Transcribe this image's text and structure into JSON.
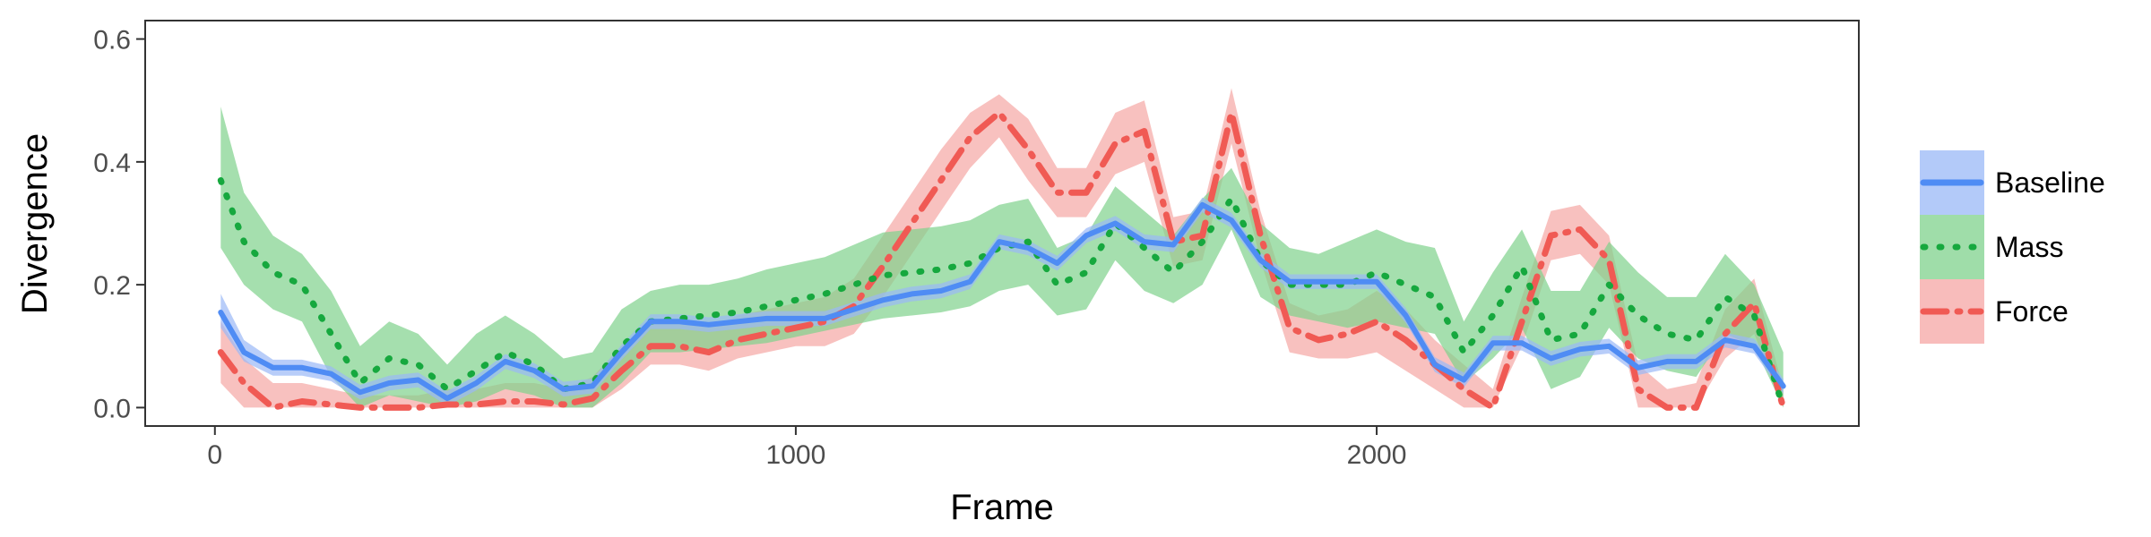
{
  "chart_data": {
    "type": "line",
    "title": "",
    "xlabel": "Frame",
    "ylabel": "Divergence",
    "xlim": [
      -120,
      2830
    ],
    "ylim": [
      -0.03,
      0.63
    ],
    "x_ticks": [
      0,
      1000,
      2000
    ],
    "x_tick_labels": [
      "0",
      "1000",
      "2000"
    ],
    "y_ticks": [
      0.0,
      0.2,
      0.4,
      0.6
    ],
    "y_tick_labels": [
      "0.0",
      "0.2",
      "0.4",
      "0.6"
    ],
    "grid": false,
    "legend_position": "right",
    "series": [
      {
        "name": "Baseline",
        "color": "#4f8cf4",
        "line_style": "solid",
        "band_color": "#9ab8f7",
        "x": [
          10,
          50,
          100,
          150,
          200,
          250,
          300,
          350,
          400,
          450,
          500,
          550,
          600,
          650,
          700,
          750,
          800,
          850,
          900,
          950,
          1000,
          1050,
          1100,
          1150,
          1200,
          1250,
          1300,
          1350,
          1400,
          1450,
          1500,
          1550,
          1600,
          1650,
          1700,
          1750,
          1800,
          1850,
          1900,
          1950,
          2000,
          2050,
          2100,
          2150,
          2200,
          2250,
          2300,
          2350,
          2400,
          2450,
          2500,
          2550,
          2600,
          2650,
          2700
        ],
        "values": [
          0.155,
          0.09,
          0.065,
          0.065,
          0.055,
          0.025,
          0.04,
          0.045,
          0.015,
          0.04,
          0.075,
          0.06,
          0.03,
          0.035,
          0.09,
          0.14,
          0.14,
          0.135,
          0.14,
          0.145,
          0.145,
          0.145,
          0.16,
          0.175,
          0.185,
          0.19,
          0.205,
          0.27,
          0.26,
          0.235,
          0.28,
          0.3,
          0.27,
          0.265,
          0.33,
          0.305,
          0.24,
          0.205,
          0.205,
          0.205,
          0.205,
          0.15,
          0.07,
          0.045,
          0.105,
          0.105,
          0.08,
          0.095,
          0.1,
          0.065,
          0.075,
          0.075,
          0.11,
          0.1,
          0.035
        ],
        "lower": [
          0.13,
          0.075,
          0.052,
          0.052,
          0.043,
          0.013,
          0.028,
          0.033,
          0.003,
          0.028,
          0.063,
          0.048,
          0.018,
          0.023,
          0.078,
          0.128,
          0.128,
          0.123,
          0.128,
          0.133,
          0.133,
          0.133,
          0.148,
          0.163,
          0.173,
          0.178,
          0.193,
          0.258,
          0.248,
          0.223,
          0.268,
          0.288,
          0.258,
          0.253,
          0.318,
          0.293,
          0.228,
          0.193,
          0.193,
          0.193,
          0.193,
          0.138,
          0.058,
          0.033,
          0.093,
          0.093,
          0.068,
          0.083,
          0.088,
          0.053,
          0.063,
          0.063,
          0.098,
          0.088,
          0.023
        ],
        "upper": [
          0.185,
          0.11,
          0.078,
          0.078,
          0.067,
          0.037,
          0.052,
          0.057,
          0.027,
          0.052,
          0.087,
          0.072,
          0.042,
          0.047,
          0.102,
          0.152,
          0.152,
          0.147,
          0.152,
          0.157,
          0.157,
          0.157,
          0.172,
          0.187,
          0.197,
          0.202,
          0.217,
          0.282,
          0.272,
          0.247,
          0.292,
          0.312,
          0.282,
          0.277,
          0.342,
          0.317,
          0.252,
          0.217,
          0.217,
          0.217,
          0.217,
          0.162,
          0.082,
          0.057,
          0.117,
          0.117,
          0.092,
          0.107,
          0.112,
          0.077,
          0.087,
          0.087,
          0.122,
          0.112,
          0.047
        ]
      },
      {
        "name": "Mass",
        "color": "#16a83e",
        "line_style": "dotted",
        "band_color": "#7fd18c",
        "x": [
          10,
          50,
          100,
          150,
          200,
          250,
          300,
          350,
          400,
          450,
          500,
          550,
          600,
          650,
          700,
          750,
          800,
          850,
          900,
          950,
          1000,
          1050,
          1100,
          1150,
          1200,
          1250,
          1300,
          1350,
          1400,
          1450,
          1500,
          1550,
          1600,
          1650,
          1700,
          1750,
          1800,
          1850,
          1900,
          1950,
          2000,
          2050,
          2100,
          2150,
          2200,
          2250,
          2300,
          2350,
          2400,
          2450,
          2500,
          2550,
          2600,
          2650,
          2700
        ],
        "values": [
          0.37,
          0.27,
          0.22,
          0.2,
          0.12,
          0.04,
          0.08,
          0.07,
          0.03,
          0.06,
          0.09,
          0.07,
          0.03,
          0.04,
          0.1,
          0.14,
          0.145,
          0.15,
          0.155,
          0.165,
          0.175,
          0.185,
          0.2,
          0.215,
          0.22,
          0.225,
          0.235,
          0.26,
          0.27,
          0.2,
          0.22,
          0.3,
          0.26,
          0.22,
          0.27,
          0.34,
          0.24,
          0.2,
          0.2,
          0.2,
          0.22,
          0.2,
          0.18,
          0.09,
          0.15,
          0.23,
          0.11,
          0.12,
          0.2,
          0.15,
          0.12,
          0.11,
          0.18,
          0.15,
          0.0
        ],
        "lower": [
          0.26,
          0.2,
          0.16,
          0.14,
          0.05,
          0.0,
          0.02,
          0.01,
          0.0,
          0.01,
          0.03,
          0.02,
          0.0,
          0.0,
          0.04,
          0.09,
          0.09,
          0.095,
          0.1,
          0.105,
          0.115,
          0.125,
          0.135,
          0.145,
          0.15,
          0.155,
          0.165,
          0.19,
          0.2,
          0.15,
          0.16,
          0.24,
          0.19,
          0.17,
          0.2,
          0.29,
          0.18,
          0.15,
          0.14,
          0.13,
          0.14,
          0.13,
          0.12,
          0.04,
          0.08,
          0.13,
          0.03,
          0.05,
          0.13,
          0.08,
          0.06,
          0.05,
          0.12,
          0.1,
          0.0
        ],
        "upper": [
          0.49,
          0.35,
          0.28,
          0.25,
          0.19,
          0.1,
          0.14,
          0.12,
          0.07,
          0.12,
          0.15,
          0.12,
          0.08,
          0.09,
          0.16,
          0.19,
          0.2,
          0.2,
          0.21,
          0.225,
          0.235,
          0.245,
          0.265,
          0.285,
          0.29,
          0.295,
          0.305,
          0.33,
          0.34,
          0.26,
          0.28,
          0.36,
          0.32,
          0.28,
          0.34,
          0.39,
          0.3,
          0.26,
          0.25,
          0.27,
          0.29,
          0.27,
          0.26,
          0.14,
          0.22,
          0.29,
          0.19,
          0.19,
          0.27,
          0.22,
          0.18,
          0.18,
          0.25,
          0.2,
          0.09
        ]
      },
      {
        "name": "Force",
        "color": "#f05a54",
        "line_style": "dashdot",
        "band_color": "#f5a6a4",
        "x": [
          10,
          50,
          100,
          150,
          200,
          250,
          300,
          350,
          400,
          450,
          500,
          550,
          600,
          650,
          700,
          750,
          800,
          850,
          900,
          950,
          1000,
          1050,
          1100,
          1150,
          1200,
          1250,
          1300,
          1350,
          1400,
          1450,
          1500,
          1550,
          1600,
          1650,
          1700,
          1750,
          1800,
          1850,
          1900,
          1950,
          2000,
          2050,
          2100,
          2150,
          2200,
          2250,
          2300,
          2350,
          2400,
          2450,
          2500,
          2550,
          2600,
          2650,
          2700
        ],
        "values": [
          0.09,
          0.04,
          0.0,
          0.01,
          0.005,
          0.0,
          0.0,
          0.0,
          0.005,
          0.005,
          0.01,
          0.01,
          0.005,
          0.015,
          0.06,
          0.1,
          0.1,
          0.09,
          0.11,
          0.12,
          0.13,
          0.14,
          0.165,
          0.23,
          0.3,
          0.37,
          0.44,
          0.48,
          0.42,
          0.35,
          0.35,
          0.43,
          0.45,
          0.27,
          0.28,
          0.48,
          0.28,
          0.13,
          0.11,
          0.12,
          0.14,
          0.11,
          0.07,
          0.03,
          0.0,
          0.14,
          0.28,
          0.29,
          0.24,
          0.03,
          0.0,
          0.0,
          0.12,
          0.17,
          0.0
        ],
        "lower": [
          0.04,
          0.0,
          0.0,
          0.0,
          0.0,
          0.0,
          0.0,
          0.0,
          0.0,
          0.0,
          0.0,
          0.0,
          0.0,
          0.0,
          0.03,
          0.07,
          0.07,
          0.06,
          0.08,
          0.09,
          0.1,
          0.1,
          0.12,
          0.18,
          0.25,
          0.32,
          0.39,
          0.44,
          0.37,
          0.31,
          0.31,
          0.38,
          0.4,
          0.23,
          0.24,
          0.43,
          0.24,
          0.09,
          0.08,
          0.08,
          0.09,
          0.06,
          0.03,
          0.0,
          0.0,
          0.1,
          0.24,
          0.25,
          0.2,
          0.0,
          0.0,
          0.0,
          0.08,
          0.12,
          0.0
        ],
        "upper": [
          0.14,
          0.08,
          0.04,
          0.04,
          0.03,
          0.02,
          0.02,
          0.02,
          0.03,
          0.03,
          0.04,
          0.04,
          0.03,
          0.05,
          0.1,
          0.14,
          0.14,
          0.13,
          0.15,
          0.16,
          0.17,
          0.18,
          0.21,
          0.28,
          0.35,
          0.42,
          0.48,
          0.51,
          0.47,
          0.39,
          0.39,
          0.48,
          0.5,
          0.31,
          0.32,
          0.52,
          0.32,
          0.17,
          0.15,
          0.16,
          0.19,
          0.16,
          0.11,
          0.07,
          0.03,
          0.18,
          0.32,
          0.33,
          0.28,
          0.07,
          0.03,
          0.04,
          0.16,
          0.21,
          0.03
        ]
      }
    ]
  }
}
